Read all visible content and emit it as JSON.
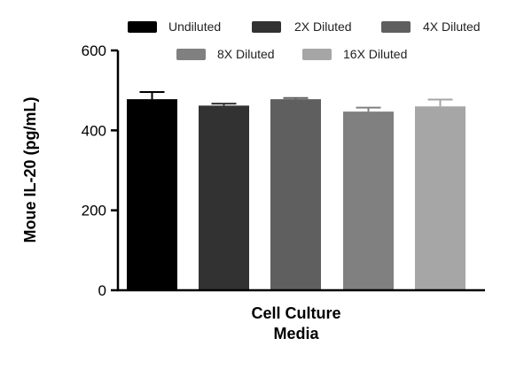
{
  "chart_data": {
    "type": "bar",
    "xlabel": [
      "Cell Culture",
      "Media"
    ],
    "ylabel": "Moue IL-20 (pg/mL)",
    "ylim": [
      0,
      600
    ],
    "yticks": [
      0,
      200,
      400,
      600
    ],
    "grid": false,
    "legend_position": "top",
    "series": [
      {
        "name": "Undiluted",
        "value": 478,
        "error": 18,
        "color": "#000000"
      },
      {
        "name": "2X Diluted",
        "value": 462,
        "error": 5,
        "color": "#323232"
      },
      {
        "name": "4X Diluted",
        "value": 478,
        "error": 3,
        "color": "#5f5f5f"
      },
      {
        "name": "8X Diluted",
        "value": 447,
        "error": 10,
        "color": "#808080"
      },
      {
        "name": "16X Diluted",
        "value": 460,
        "error": 17,
        "color": "#a6a6a6"
      }
    ]
  }
}
